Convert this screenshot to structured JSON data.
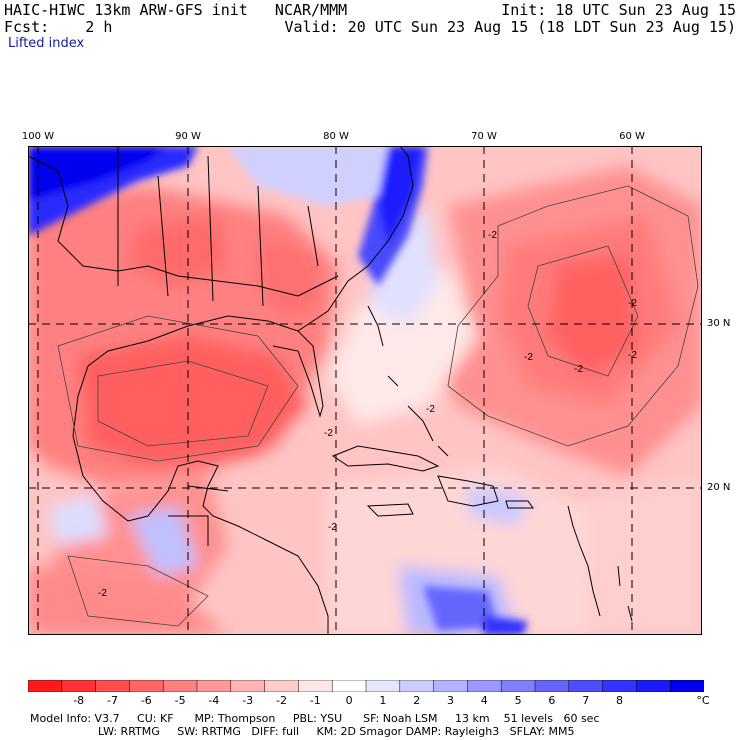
{
  "header": {
    "model_title": "HAIC-HIWC 13km ARW-GFS init   NCAR/MMM",
    "init": "Init: 18 UTC Sun 23 Aug 15",
    "fcst": "Fcst:    2 h",
    "valid": "Valid: 20 UTC Sun 23 Aug 15 (18 LDT Sun 23 Aug 15)",
    "field": "Lifted index"
  },
  "axes": {
    "lon_labels": [
      "100 W",
      "90 W",
      "80 W",
      "70 W",
      "60 W"
    ],
    "lat_labels": [
      "30 N",
      "20 N"
    ]
  },
  "contour_labels": [
    "-2",
    "-2",
    "-2",
    "-2",
    "-2",
    "-2",
    "-2",
    "-2",
    "-2"
  ],
  "colorbar": {
    "ticks": [
      "-8",
      "-7",
      "-6",
      "-5",
      "-4",
      "-3",
      "-2",
      "-1",
      "0",
      "1",
      "2",
      "3",
      "4",
      "5",
      "6",
      "7",
      "8"
    ],
    "unit": "°C",
    "colors": [
      "#ff1a1a",
      "#ff3333",
      "#ff4d4d",
      "#ff6666",
      "#ff8080",
      "#ff9999",
      "#ffb3b3",
      "#ffcccc",
      "#ffe6e6",
      "#ffffff",
      "#e6e6ff",
      "#ccccff",
      "#b3b3ff",
      "#9999ff",
      "#8080ff",
      "#6666ff",
      "#4d4dff",
      "#3333ff",
      "#1a1aff",
      "#0000ee"
    ]
  },
  "model_info": {
    "line1": "Model Info: V3.7     CU: KF      MP: Thompson     PBL: YSU      SF: Noah LSM     13 km    51 levels   60 sec",
    "line2": "LW: RRTMG     SW: RRTMG   DIFF: full     KM: 2D Smagor DAMP: Rayleigh3   SFLAY: MM5"
  }
}
